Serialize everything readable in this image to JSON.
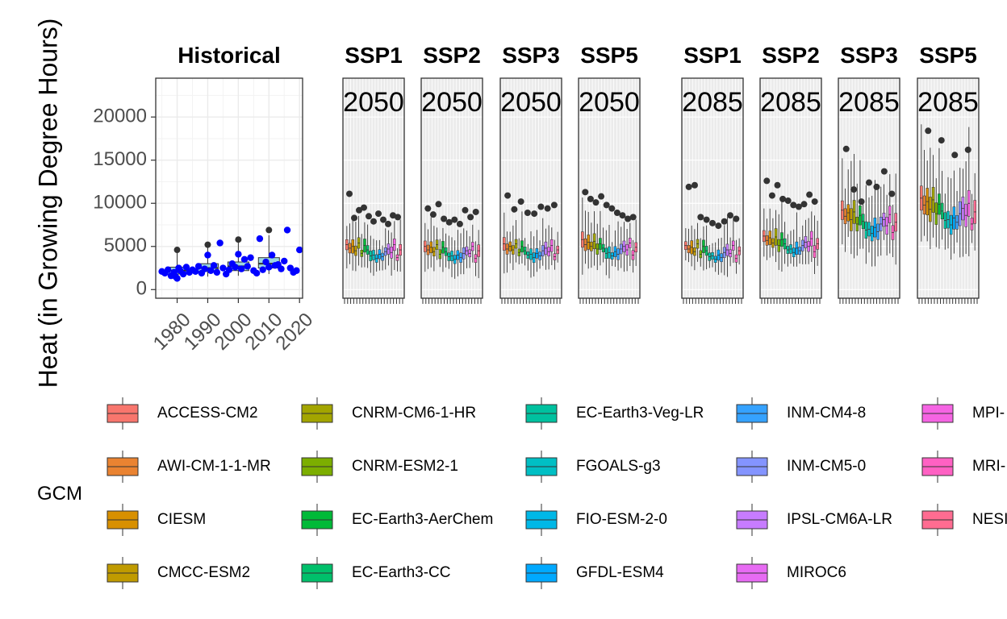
{
  "chart_data": {
    "type": "boxplot",
    "ylabel": "Heat (in Growing Degree Hours)",
    "ylim": [
      -1000,
      24500
    ],
    "y_ticks": [
      0,
      5000,
      10000,
      15000,
      20000
    ],
    "y_tick_labels": [
      "0",
      "5000",
      "10000",
      "15000",
      "20000"
    ],
    "grid": true,
    "legend": {
      "title": "GCM",
      "position": "bottom",
      "entries": [
        {
          "name": "ACCESS-CM2",
          "color": "#F8766D"
        },
        {
          "name": "AWI-CM-1-1-MR",
          "color": "#EA8331"
        },
        {
          "name": "CIESM",
          "color": "#D89000"
        },
        {
          "name": "CMCC-ESM2",
          "color": "#C09B00"
        },
        {
          "name": "CNRM-CM6-1-HR",
          "color": "#A3A500"
        },
        {
          "name": "CNRM-ESM2-1",
          "color": "#7CAE00"
        },
        {
          "name": "EC-Earth3-AerChem",
          "color": "#00BA38"
        },
        {
          "name": "EC-Earth3-CC",
          "color": "#00C06B"
        },
        {
          "name": "EC-Earth3-Veg-LR",
          "color": "#00C19F"
        },
        {
          "name": "FGOALS-g3",
          "color": "#00BFC4"
        },
        {
          "name": "FIO-ESM-2-0",
          "color": "#00B8E7"
        },
        {
          "name": "GFDL-ESM4",
          "color": "#00A9FF"
        },
        {
          "name": "INM-CM4-8",
          "color": "#35A2FF"
        },
        {
          "name": "INM-CM5-0",
          "color": "#8494FF"
        },
        {
          "name": "IPSL-CM6A-LR",
          "color": "#C77CFF"
        },
        {
          "name": "MIROC6",
          "color": "#E76BF3"
        },
        {
          "name": "MPI-",
          "color": "#F564E3"
        },
        {
          "name": "MRI-",
          "color": "#FF61C3"
        },
        {
          "name": "NESI",
          "color": "#FF6C91"
        }
      ]
    },
    "historical": {
      "title": "Historical",
      "x_ticks": [
        1980,
        1990,
        2000,
        2010,
        2020
      ],
      "xlim": [
        1973,
        2021
      ],
      "point_color": "#0000FF",
      "boxes": [
        {
          "x": 1980,
          "q1": 1800,
          "median": 2200,
          "q3": 2600,
          "low": 1200,
          "high": 4500,
          "outliers": [
            4600
          ]
        },
        {
          "x": 1990,
          "q1": 2100,
          "median": 2500,
          "q3": 3000,
          "low": 1500,
          "high": 5000,
          "outliers": [
            5200
          ]
        },
        {
          "x": 2000,
          "q1": 2200,
          "median": 2700,
          "q3": 3200,
          "low": 1600,
          "high": 5600,
          "outliers": [
            5800
          ]
        },
        {
          "x": 2010,
          "q1": 2500,
          "median": 3000,
          "q3": 3700,
          "low": 1800,
          "high": 6300,
          "outliers": [
            6900
          ]
        }
      ],
      "points": [
        [
          1975,
          2100
        ],
        [
          1976,
          1900
        ],
        [
          1977,
          2300
        ],
        [
          1978,
          1600
        ],
        [
          1979,
          2000
        ],
        [
          1979.5,
          1500
        ],
        [
          1980,
          1300
        ],
        [
          1980.5,
          2500
        ],
        [
          1981,
          2200
        ],
        [
          1982,
          1800
        ],
        [
          1983,
          2600
        ],
        [
          1984,
          2000
        ],
        [
          1985,
          2300
        ],
        [
          1986,
          2100
        ],
        [
          1987,
          2700
        ],
        [
          1988,
          1900
        ],
        [
          1989,
          2400
        ],
        [
          1990,
          4000
        ],
        [
          1991,
          2200
        ],
        [
          1992,
          2800
        ],
        [
          1993,
          2000
        ],
        [
          1994,
          5400
        ],
        [
          1995,
          2500
        ],
        [
          1996,
          1800
        ],
        [
          1997,
          2300
        ],
        [
          1998,
          3000
        ],
        [
          1999,
          2600
        ],
        [
          2000,
          4100
        ],
        [
          2001,
          2400
        ],
        [
          2002,
          3500
        ],
        [
          2003,
          2700
        ],
        [
          2004,
          3700
        ],
        [
          2005,
          2200
        ],
        [
          2006,
          1900
        ],
        [
          2007,
          5900
        ],
        [
          2008,
          2300
        ],
        [
          2009,
          3200
        ],
        [
          2010,
          2600
        ],
        [
          2011,
          4000
        ],
        [
          2012,
          2800
        ],
        [
          2013,
          2900
        ],
        [
          2014,
          2400
        ],
        [
          2015,
          3300
        ],
        [
          2016,
          6900
        ],
        [
          2017,
          2500
        ],
        [
          2018,
          2000
        ],
        [
          2019,
          2200
        ],
        [
          2020,
          4600
        ]
      ]
    },
    "projection_groups": [
      {
        "period": "2050",
        "panels": [
          {
            "title": "SSP1",
            "label": "2050",
            "medians": [
              5200,
              4800,
              5000,
              4500,
              5400,
              4200,
              5100,
              4600,
              3900,
              4000,
              3600,
              4100,
              3800,
              4400,
              4700,
              4300,
              5200,
              3700,
              4600
            ],
            "outliers": [
              11100,
              8300,
              9200,
              9500,
              8500,
              7900,
              8800,
              8100,
              7600,
              8600,
              8400
            ]
          },
          {
            "title": "SSP2",
            "label": "2050",
            "medians": [
              5000,
              4600,
              4900,
              4400,
              5200,
              4100,
              4900,
              4400,
              3800,
              3900,
              3500,
              4000,
              3700,
              4200,
              4500,
              4200,
              5000,
              3600,
              4500
            ],
            "outliers": [
              9400,
              8700,
              9900,
              8200,
              7800,
              8100,
              7600,
              9200,
              8400,
              9000
            ]
          },
          {
            "title": "SSP3",
            "label": "2050",
            "medians": [
              5300,
              4700,
              5000,
              4600,
              5300,
              4300,
              5000,
              4500,
              4000,
              4100,
              3700,
              4200,
              3900,
              4500,
              4800,
              4400,
              5100,
              3800,
              4600
            ],
            "outliers": [
              10900,
              9300,
              10200,
              8900,
              8800,
              9600,
              9400,
              9800
            ]
          },
          {
            "title": "SSP5",
            "label": "2050",
            "medians": [
              5800,
              5200,
              5500,
              5000,
              5600,
              4700,
              5300,
              4800,
              4200,
              4300,
              3900,
              4400,
              4100,
              4700,
              5000,
              4600,
              5400,
              4000,
              4900
            ],
            "outliers": [
              11300,
              10500,
              10100,
              10800,
              9800,
              9400,
              8900,
              8600,
              8200,
              8400
            ]
          }
        ]
      },
      {
        "period": "2085",
        "panels": [
          {
            "title": "SSP1",
            "label": "2085",
            "medians": [
              5100,
              4700,
              4900,
              4400,
              5300,
              4100,
              5000,
              4500,
              3800,
              3900,
              3500,
              4000,
              3700,
              4300,
              4600,
              4200,
              5100,
              3600,
              4500
            ],
            "outliers": [
              11900,
              12100,
              8400,
              8100,
              7700,
              7400,
              7900,
              8600,
              8200
            ]
          },
          {
            "title": "SSP2",
            "label": "2085",
            "medians": [
              6200,
              5700,
              6000,
              5400,
              6100,
              5100,
              5800,
              5300,
              4600,
              4700,
              4300,
              4800,
              4500,
              5100,
              5500,
              5000,
              5900,
              4400,
              5300
            ],
            "outliers": [
              12600,
              10900,
              12100,
              10500,
              10300,
              9800,
              9600,
              9900,
              11000,
              10200
            ]
          },
          {
            "title": "SSP3",
            "label": "2085",
            "medians": [
              9200,
              8500,
              8900,
              8100,
              9000,
              7600,
              8600,
              7900,
              6900,
              7000,
              6500,
              7200,
              6700,
              7600,
              8100,
              7400,
              8700,
              6600,
              7800
            ],
            "outliers": [
              16300,
              11600,
              10200,
              12400,
              11900,
              13700,
              11100
            ]
          },
          {
            "title": "SSP5",
            "label": "2085",
            "medians": [
              10600,
              9800,
              10200,
              9300,
              10400,
              8800,
              9900,
              9100,
              8000,
              8100,
              7500,
              8300,
              7800,
              8800,
              9400,
              8600,
              10000,
              7600,
              9000
            ],
            "outliers": [
              18400,
              17300,
              15600,
              16200
            ]
          }
        ]
      }
    ]
  }
}
